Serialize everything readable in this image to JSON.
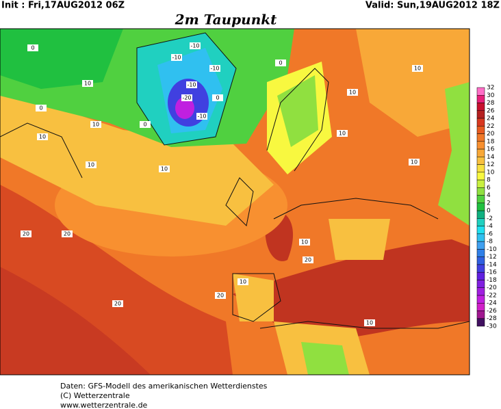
{
  "header": {
    "init": "Init : Fri,17AUG2012 06Z",
    "valid": "Valid: Sun,19AUG2012 18Z",
    "title": "2m Taupunkt"
  },
  "legend": {
    "labels": [
      32,
      30,
      28,
      26,
      24,
      22,
      20,
      18,
      16,
      14,
      12,
      10,
      8,
      6,
      4,
      2,
      0,
      -2,
      -4,
      -6,
      -8,
      -10,
      -12,
      -14,
      -16,
      -18,
      -20,
      -22,
      -24,
      -26,
      -28,
      -30
    ],
    "colors": [
      "#ff6ec7",
      "#e8207a",
      "#c8102e",
      "#b42020",
      "#d83820",
      "#e85a20",
      "#f07828",
      "#f89030",
      "#f8a838",
      "#f8c040",
      "#f8e040",
      "#f8f840",
      "#c8f040",
      "#90e040",
      "#50d040",
      "#20c040",
      "#10b080",
      "#20d0c0",
      "#20e0f0",
      "#30c0f0",
      "#40a0f0",
      "#3080e8",
      "#3060e0",
      "#4040e0",
      "#6020e0",
      "#8020e0",
      "#a020e0",
      "#c020e0",
      "#d020c8",
      "#a01890",
      "#401060"
    ]
  },
  "map": {
    "contour_labels": [
      -10,
      -10,
      -10,
      -10,
      -20,
      -10,
      0,
      0,
      0,
      0,
      10,
      10,
      10,
      10,
      10,
      10,
      10,
      10,
      20,
      20,
      20,
      20,
      10,
      10,
      20,
      10,
      0,
      10
    ]
  },
  "footer": {
    "lines": [
      "Daten: GFS-Modell des amerikanischen Wetterdienstes",
      "(C) Wetterzentrale",
      "www.wetterzentrale.de"
    ]
  }
}
